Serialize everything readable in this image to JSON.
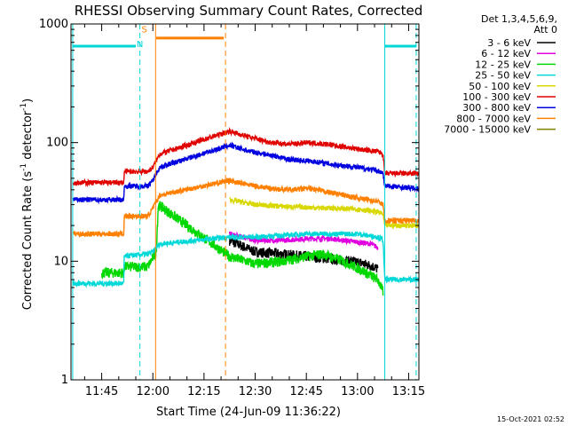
{
  "chart_data": {
    "type": "line",
    "title": "RHESSI Observing Summary Count Rates, Corrected",
    "xlabel": "Start Time (24-Jun-09 11:36:22)",
    "ylabel_main": "Corrected Count Rate (s",
    "ylabel_sup1": "-1",
    "ylabel_mid": " detector",
    "ylabel_sup2": "-1",
    "ylabel_end": ")",
    "y_scale": "log",
    "ylim": [
      1,
      1000
    ],
    "xlim_min": [
      696,
      798
    ],
    "x_ticks": [
      {
        "min": 705,
        "label": "11:45"
      },
      {
        "min": 720,
        "label": "12:00"
      },
      {
        "min": 735,
        "label": "12:15"
      },
      {
        "min": 750,
        "label": "12:30"
      },
      {
        "min": 765,
        "label": "12:45"
      },
      {
        "min": 780,
        "label": "13:00"
      },
      {
        "min": 795,
        "label": "13:15"
      }
    ],
    "y_ticks": [
      {
        "value": 1,
        "label": "1"
      },
      {
        "value": 10,
        "label": "10"
      },
      {
        "value": 100,
        "label": "100"
      },
      {
        "value": 1000,
        "label": "1000"
      }
    ],
    "legend_header": [
      "Det 1,3,4,5,6,9,",
      "Att 0"
    ],
    "legend_placement": "right",
    "footer_date": "15-Oct-2021 02:52",
    "segments": [
      [
        696.5,
        722.5
      ],
      [
        742.0,
        788.0
      ]
    ],
    "series": [
      {
        "name": "3 - 6 keV",
        "color": "#000000",
        "values": [
          [
            742.5,
            15
          ],
          [
            750,
            12
          ],
          [
            758,
            11.5
          ],
          [
            765,
            11
          ],
          [
            772,
            10.5
          ],
          [
            780,
            9.8
          ],
          [
            784,
            9.2
          ],
          [
            786,
            8.6
          ]
        ]
      },
      {
        "name": "6 - 12 keV",
        "color": "#e000e0",
        "values": [
          [
            742.5,
            17
          ],
          [
            750,
            15
          ],
          [
            758,
            15
          ],
          [
            765,
            15.5
          ],
          [
            772,
            15.5
          ],
          [
            780,
            14.5
          ],
          [
            784,
            14
          ],
          [
            786,
            13
          ]
        ]
      },
      {
        "name": "12 - 25 keV",
        "color": "#00d800",
        "values": [
          [
            705,
            8
          ],
          [
            711.5,
            8
          ],
          [
            711.6,
            9
          ],
          [
            718.5,
            9
          ],
          [
            721,
            12
          ],
          [
            721.6,
            30
          ],
          [
            742.5,
            11
          ],
          [
            750,
            9.5
          ],
          [
            758,
            10
          ],
          [
            765,
            11
          ],
          [
            770,
            11.5
          ],
          [
            776,
            10
          ],
          [
            781,
            8.5
          ],
          [
            786,
            7
          ],
          [
            787.5,
            5.5
          ]
        ]
      },
      {
        "name": "25 - 50 keV",
        "color": "#00d8d8",
        "values": [
          [
            696.5,
            6.5
          ],
          [
            711.5,
            6.5
          ],
          [
            711.6,
            11
          ],
          [
            718.5,
            11.5
          ],
          [
            720,
            12
          ],
          [
            722,
            14
          ],
          [
            742.5,
            16
          ],
          [
            750,
            16
          ],
          [
            758,
            16.5
          ],
          [
            765,
            17
          ],
          [
            772,
            17
          ],
          [
            780,
            17
          ],
          [
            786,
            16
          ],
          [
            787.5,
            15
          ],
          [
            788,
            7
          ],
          [
            798,
            7
          ]
        ]
      },
      {
        "name": "50 - 100 keV",
        "color": "#d8d800",
        "values": [
          [
            742.5,
            33
          ],
          [
            750,
            30
          ],
          [
            758,
            29
          ],
          [
            765,
            28.5
          ],
          [
            772,
            28
          ],
          [
            780,
            27.5
          ],
          [
            786,
            26
          ],
          [
            787.5,
            25
          ],
          [
            788,
            20
          ],
          [
            798,
            20
          ]
        ]
      },
      {
        "name": "100 - 300 keV",
        "color": "#e00000",
        "values": [
          [
            696.5,
            46
          ],
          [
            711.5,
            46
          ],
          [
            711.6,
            57
          ],
          [
            718.5,
            57
          ],
          [
            720,
            62
          ],
          [
            722,
            80
          ],
          [
            742.5,
            125
          ],
          [
            748,
            112
          ],
          [
            755,
            100
          ],
          [
            760,
            97
          ],
          [
            766,
            100
          ],
          [
            772,
            96
          ],
          [
            778,
            90
          ],
          [
            783,
            86
          ],
          [
            786,
            84
          ],
          [
            787.5,
            80
          ],
          [
            788,
            55
          ],
          [
            798,
            55
          ]
        ]
      },
      {
        "name": "300 - 800 keV",
        "color": "#0000e0",
        "values": [
          [
            696.5,
            33
          ],
          [
            711.5,
            33
          ],
          [
            711.6,
            43
          ],
          [
            718.5,
            43
          ],
          [
            720,
            48
          ],
          [
            722,
            62
          ],
          [
            742.5,
            95
          ],
          [
            748,
            85
          ],
          [
            755,
            78
          ],
          [
            760,
            72
          ],
          [
            766,
            70
          ],
          [
            772,
            66
          ],
          [
            778,
            63
          ],
          [
            783,
            60
          ],
          [
            786,
            58
          ],
          [
            787.5,
            55
          ],
          [
            788,
            43
          ],
          [
            798,
            41
          ]
        ]
      },
      {
        "name": "800 - 7000 keV",
        "color": "#ff8000",
        "values": [
          [
            696.5,
            17
          ],
          [
            711.5,
            17
          ],
          [
            711.6,
            24
          ],
          [
            718.5,
            24
          ],
          [
            720,
            28
          ],
          [
            722,
            36
          ],
          [
            742.5,
            48
          ],
          [
            748,
            44
          ],
          [
            755,
            41
          ],
          [
            760,
            40
          ],
          [
            766,
            41
          ],
          [
            772,
            38
          ],
          [
            778,
            35
          ],
          [
            783,
            33
          ],
          [
            786,
            32
          ],
          [
            787.5,
            30
          ],
          [
            788,
            22
          ],
          [
            798,
            22
          ]
        ]
      },
      {
        "name": "7000 - 15000 keV",
        "color": "#808000",
        "values": []
      }
    ],
    "markers": [
      {
        "kind": "solid",
        "color": "#00d8d8",
        "x": 696.5
      },
      {
        "kind": "dashed",
        "color": "#00d8d8",
        "x": 716.2
      },
      {
        "kind": "solid",
        "color": "#ff8000",
        "x": 720.8
      },
      {
        "kind": "dashed",
        "color": "#ff8000",
        "x": 741.3
      },
      {
        "kind": "solid",
        "color": "#00d8d8",
        "x": 788.0
      },
      {
        "kind": "dashed",
        "color": "#00d8d8",
        "x": 797.2
      }
    ],
    "flag_bars": [
      {
        "color": "#00d8d8",
        "x0": 696.5,
        "x1": 715.0,
        "y": 650
      },
      {
        "color": "#ff8000",
        "x0": 721.0,
        "x1": 740.8,
        "y": 760
      },
      {
        "color": "#00d8d8",
        "x0": 788.0,
        "x1": 797.2,
        "y": 650
      }
    ],
    "flag_labels": [
      {
        "text": "S",
        "color": "#ff8000",
        "x": 717.5,
        "y": 850
      },
      {
        "text": "N",
        "color": "#00d8d8",
        "x": 716.2,
        "y": 640
      }
    ]
  }
}
